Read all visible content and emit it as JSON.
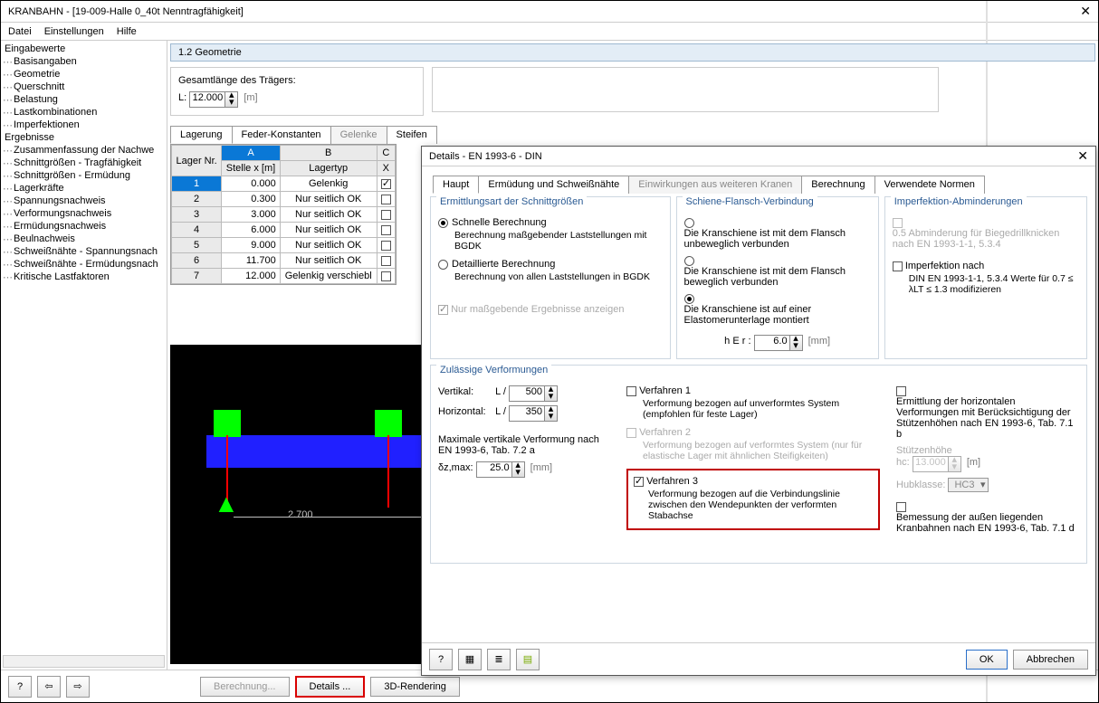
{
  "window": {
    "title": "KRANBAHN - [19-009-Halle 0_40t Nenntragfähigkeit]"
  },
  "menu": {
    "file": "Datei",
    "settings": "Einstellungen",
    "help": "Hilfe"
  },
  "nav": {
    "eingabe": "Eingabewerte",
    "items_in": [
      "Basisangaben",
      "Geometrie",
      "Querschnitt",
      "Belastung",
      "Lastkombinationen",
      "Imperfektionen"
    ],
    "ergebnisse": "Ergebnisse",
    "items_erg": [
      "Zusammenfassung der Nachwe",
      "Schnittgrößen - Tragfähigkeit",
      "Schnittgrößen - Ermüdung",
      "Lagerkräfte",
      "Spannungsnachweis",
      "Verformungsnachweis",
      "Ermüdungsnachweis",
      "Beulnachweis",
      "Schweißnähte - Spannungsnach",
      "Schweißnähte - Ermüdungsnach",
      "Kritische Lastfaktoren"
    ]
  },
  "geom": {
    "panel": "1.2 Geometrie",
    "len_label": "Gesamtlänge des Trägers:",
    "L": "L:",
    "L_val": "12.000",
    "unit": "[m]"
  },
  "supTabs": {
    "lagerung": "Lagerung",
    "feder": "Feder-Konstanten",
    "gelenke": "Gelenke",
    "steifen": "Steifen"
  },
  "grid": {
    "colhead_letters": [
      "A",
      "B",
      "C"
    ],
    "h_lager": "Lager\nNr.",
    "h_stelle": "Stelle\nx [m]",
    "h_typ": "Lagertyp",
    "h_x": "X",
    "rows": [
      {
        "nr": "1",
        "x": "0.000",
        "typ": "Gelenkig",
        "chk": true
      },
      {
        "nr": "2",
        "x": "0.300",
        "typ": "Nur seitlich OK",
        "chk": false
      },
      {
        "nr": "3",
        "x": "3.000",
        "typ": "Nur seitlich OK",
        "chk": false
      },
      {
        "nr": "4",
        "x": "6.000",
        "typ": "Nur seitlich OK",
        "chk": false
      },
      {
        "nr": "5",
        "x": "9.000",
        "typ": "Nur seitlich OK",
        "chk": false
      },
      {
        "nr": "6",
        "x": "11.700",
        "typ": "Nur seitlich OK",
        "chk": false
      },
      {
        "nr": "7",
        "x": "12.000",
        "typ": "Gelenkig verschiebl",
        "chk": false
      }
    ]
  },
  "viewport": {
    "dim": "2.700",
    "beam_color": "#2020ff",
    "support_color": "#00ff00",
    "line_color": "#ff0000",
    "bg": "#000000"
  },
  "bottom": {
    "berechnung": "Berechnung...",
    "details": "Details ...",
    "render": "3D-Rendering"
  },
  "dialog": {
    "title": "Details - EN 1993-6 - DIN",
    "tabs": {
      "haupt": "Haupt",
      "erm": "Ermüdung und Schweißnähte",
      "einw": "Einwirkungen aus weiteren Kranen",
      "calc": "Berechnung",
      "norm": "Verwendete Normen"
    },
    "g1": {
      "title": "Ermittlungsart der Schnittgrößen",
      "r1": "Schnelle Berechnung",
      "r1b": "Berechnung maßgebender Laststellungen mit BGDK",
      "r2": "Detaillierte Berechnung",
      "r2b": "Berechnung von allen Laststellungen in BGDK",
      "chk": "Nur maßgebende Ergebnisse anzeigen"
    },
    "g2": {
      "title": "Schiene-Flansch-Verbindung",
      "r1": "Die Kranschiene ist mit dem Flansch unbeweglich verbunden",
      "r2": "Die Kranschiene ist mit dem Flansch beweglich verbunden",
      "r3": "Die Kranschiene ist auf einer Elastomerunterlage montiert",
      "hE": "h E r :",
      "hE_val": "6.0",
      "unit": "[mm]"
    },
    "g3": {
      "title": "Imperfektion-Abminderungen",
      "c1": "0.5 Abminderung für Biegedrillknicken nach EN 1993-1-1, 5.3.4",
      "c2": "Imperfektion nach",
      "c2b": "DIN EN 1993-1-1, 5.3.4 Werte für 0.7 ≤ λLT ≤ 1.3 modifizieren"
    },
    "g4": {
      "title": "Zulässige Verformungen",
      "vert": "Vertikal:",
      "horz": "Horizontal:",
      "Lslash": "L /",
      "v_val": "500",
      "h_val": "350",
      "max_label": "Maximale vertikale Verformung nach EN 1993-6, Tab. 7.2 a",
      "dz": "δz,max:",
      "dz_val": "25.0",
      "mm": "[mm]",
      "v1": "Verfahren 1",
      "v1b": "Verformung bezogen auf unverformtes System (empfohlen für feste Lager)",
      "v2": "Verfahren 2",
      "v2b": "Verformung bezogen auf verformtes System (nur für elastische Lager mit ähnlichen Steifigkeiten)",
      "v3": "Verfahren 3",
      "v3b": "Verformung bezogen auf die Verbindungslinie zwischen den Wendepunkten der verformten Stabachse",
      "e1": "Ermittlung der horizontalen Verformungen mit Berücksichtigung der Stützenhöhen nach EN 1993-6, Tab. 7.1 b",
      "stutz": "Stützenhöhe",
      "hc": "hc:",
      "hc_val": "13.000",
      "m": "[m]",
      "hub": "Hubklasse:",
      "hub_val": "HC3",
      "bem": "Bemessung der außen liegenden Kranbahnen nach EN 1993-6, Tab. 7.1 d"
    },
    "ok": "OK",
    "cancel": "Abbrechen"
  },
  "colors": {
    "accent": "#2a5a93",
    "hl_red": "#d90000"
  }
}
